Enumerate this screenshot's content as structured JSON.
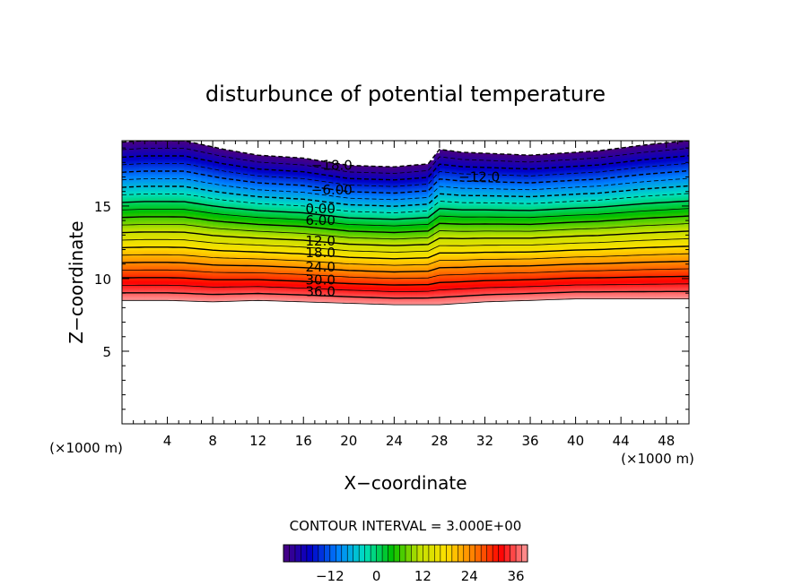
{
  "chart_data": {
    "type": "contour",
    "title": "disturbunce of potential temperature",
    "xlabel": "X−coordinate",
    "ylabel": "Z−coordinate",
    "x_unit_left": "(×1000 m)",
    "x_unit_right": "(×1000 m)",
    "xlim": [
      0,
      50
    ],
    "ylim": [
      0,
      19.5
    ],
    "x_ticks": [
      4,
      8,
      12,
      16,
      20,
      24,
      28,
      32,
      36,
      40,
      44,
      48
    ],
    "x_tick_labels": [
      "4",
      "8",
      "12",
      "16",
      "20",
      "24",
      "28",
      "32",
      "36",
      "40",
      "44",
      "48"
    ],
    "y_ticks": [
      5,
      10,
      15
    ],
    "y_tick_labels": [
      "5",
      "10",
      "15"
    ],
    "contour_interval_text": "CONTOUR INTERVAL = 3.000E+00",
    "contour_interval": 3,
    "value_range": [
      -24,
      39
    ],
    "colormap": [
      "#4a0080",
      "#0000c8",
      "#0080ff",
      "#00e0c0",
      "#00c000",
      "#c0e000",
      "#ffe000",
      "#ff8000",
      "#ff0000",
      "#ff9a9a"
    ],
    "domain_bottom": [
      [
        0,
        8.5
      ],
      [
        4,
        8.5
      ],
      [
        8,
        8.4
      ],
      [
        12,
        8.5
      ],
      [
        16,
        8.4
      ],
      [
        20,
        8.3
      ],
      [
        24,
        8.2
      ],
      [
        28,
        8.2
      ],
      [
        32,
        8.4
      ],
      [
        36,
        8.5
      ],
      [
        40,
        8.6
      ],
      [
        44,
        8.6
      ],
      [
        50,
        8.6
      ]
    ],
    "domain_top": [
      [
        0,
        19.4
      ],
      [
        2,
        19.5
      ],
      [
        5.5,
        19.5
      ],
      [
        9,
        18.9
      ],
      [
        12,
        18.5
      ],
      [
        16,
        18.3
      ],
      [
        20,
        17.8
      ],
      [
        24,
        17.7
      ],
      [
        27,
        17.9
      ],
      [
        28,
        18.9
      ],
      [
        30,
        18.7
      ],
      [
        36,
        18.5
      ],
      [
        42,
        18.8
      ],
      [
        46,
        19.2
      ],
      [
        50,
        19.5
      ]
    ],
    "contour_labels": [
      {
        "text": "−18.0",
        "x": 18.5,
        "z": 17.8
      },
      {
        "text": "−12.0",
        "x": 31.5,
        "z": 17.0
      },
      {
        "text": "−6.00",
        "x": 18.5,
        "z": 16.1
      },
      {
        "text": "0.00",
        "x": 17.5,
        "z": 14.8
      },
      {
        "text": "6.00",
        "x": 17.5,
        "z": 14.0
      },
      {
        "text": "12.0",
        "x": 17.5,
        "z": 12.6
      },
      {
        "text": "18.0",
        "x": 17.5,
        "z": 11.8
      },
      {
        "text": "24.0",
        "x": 17.5,
        "z": 10.8
      },
      {
        "text": "30.0",
        "x": 17.5,
        "z": 9.9
      },
      {
        "text": "36.0",
        "x": 17.5,
        "z": 9.1
      }
    ],
    "colorbar_ticks": [
      -12,
      0,
      12,
      24,
      36
    ],
    "colorbar_tick_labels": [
      "−12",
      "0",
      "12",
      "24",
      "36"
    ],
    "grid": false
  }
}
